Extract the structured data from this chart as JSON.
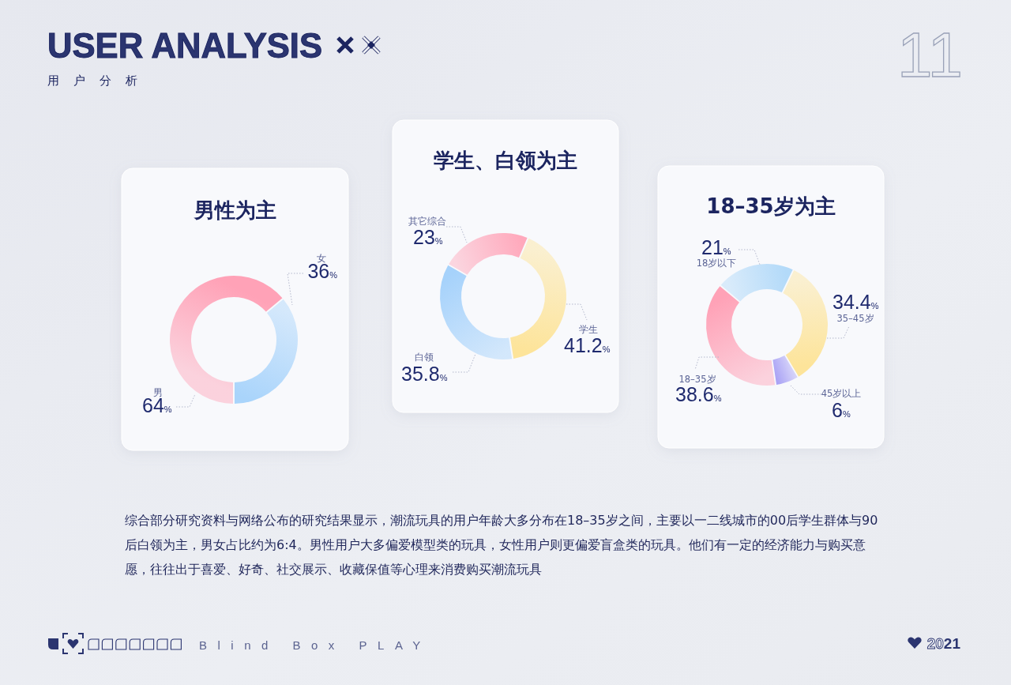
{
  "chart_data": [
    {
      "type": "other",
      "title": "USER ANALYSIS",
      "subtitle": "用户分析",
      "annotations": [
        "11"
      ]
    },
    {
      "type": "donut",
      "title": "男性为主",
      "categories": [
        "男",
        "女"
      ],
      "values": [
        64,
        36
      ],
      "colors": [
        "#ffa2b7",
        "#a9d4fb"
      ],
      "value_labels": [
        "64%",
        "36%"
      ]
    },
    {
      "type": "donut",
      "title": "学生、白领为主",
      "categories": [
        "其它综合",
        "学生",
        "白领"
      ],
      "values": [
        23,
        41.2,
        35.8
      ],
      "colors": [
        "#ffa9bc",
        "#fde49a",
        "#a6d2fb"
      ],
      "value_labels": [
        "23%",
        "41.2%",
        "35.8%"
      ]
    },
    {
      "type": "donut",
      "title": "18–35岁为主",
      "categories": [
        "18岁以下",
        "35–45岁",
        "45岁以上",
        "18–35岁"
      ],
      "values": [
        21,
        34.4,
        6,
        38.6
      ],
      "colors": [
        "#b3daf9",
        "#fde49a",
        "#aaa3f5",
        "#ffa2b7"
      ],
      "value_labels": [
        "21%",
        "34.4%",
        "6%",
        "38.6%"
      ]
    },
    {
      "type": "other",
      "annotations": [
        "综合部分研究资料与网络公布的研究结果显示，潮流玩具的用户年龄大多分布在18–35岁之间，主要以一二线城市的00后学生群体与90后白领为主，男女占比约为6:4。男性用户大多偏爱模型类的玩具，女性用户则更偏爱盲盒类的玩具。他们有一定的经济能力与购买意愿，往往出于喜爱、好奇、社交展示、收藏保值等心理来消费购买潮流玩具",
        "Blind Box PLAY",
        "2021"
      ]
    }
  ]
}
